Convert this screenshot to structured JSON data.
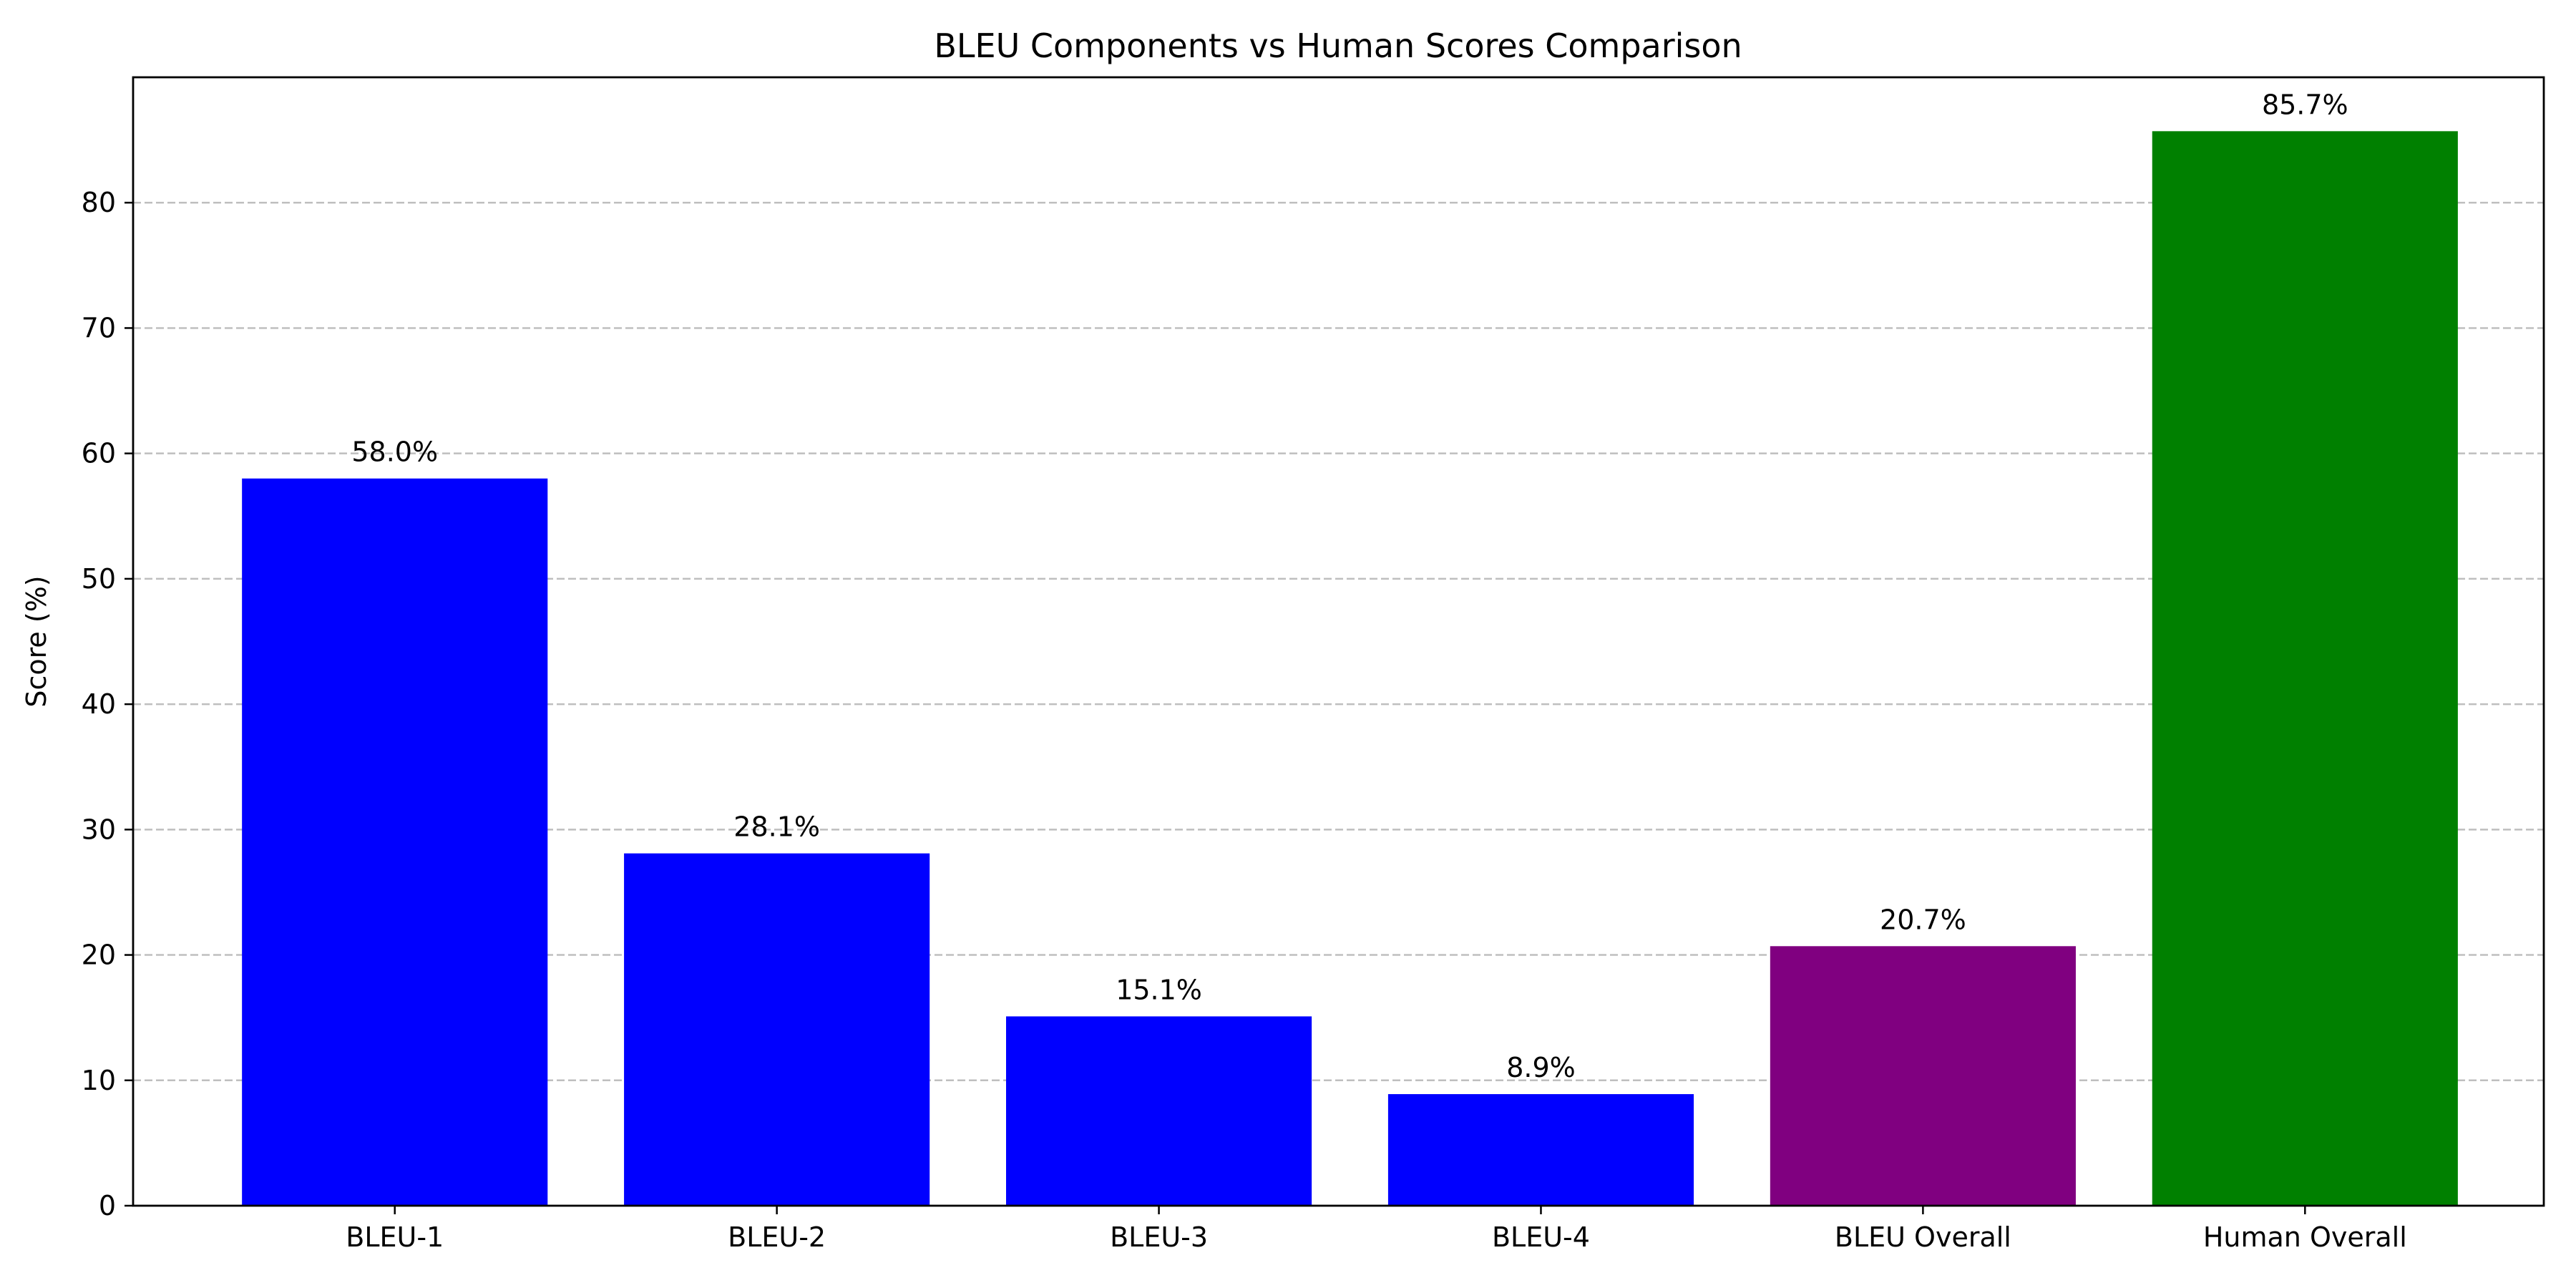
{
  "chart_data": {
    "type": "bar",
    "title": "BLEU Components vs Human Scores Comparison",
    "xlabel": "",
    "ylabel": "Score (%)",
    "ylim": [
      0,
      90
    ],
    "yticks": [
      0,
      10,
      20,
      30,
      40,
      50,
      60,
      70,
      80
    ],
    "grid": "y, dashed",
    "categories": [
      "BLEU-1",
      "BLEU-2",
      "BLEU-3",
      "BLEU-4",
      "BLEU Overall",
      "Human Overall"
    ],
    "values": [
      58.0,
      28.1,
      15.1,
      8.9,
      20.7,
      85.7
    ],
    "value_labels": [
      "58.0%",
      "28.1%",
      "15.1%",
      "8.9%",
      "20.7%",
      "85.7%"
    ],
    "colors": [
      "#0000ff",
      "#0000ff",
      "#0000ff",
      "#0000ff",
      "#800080",
      "#008000"
    ]
  }
}
